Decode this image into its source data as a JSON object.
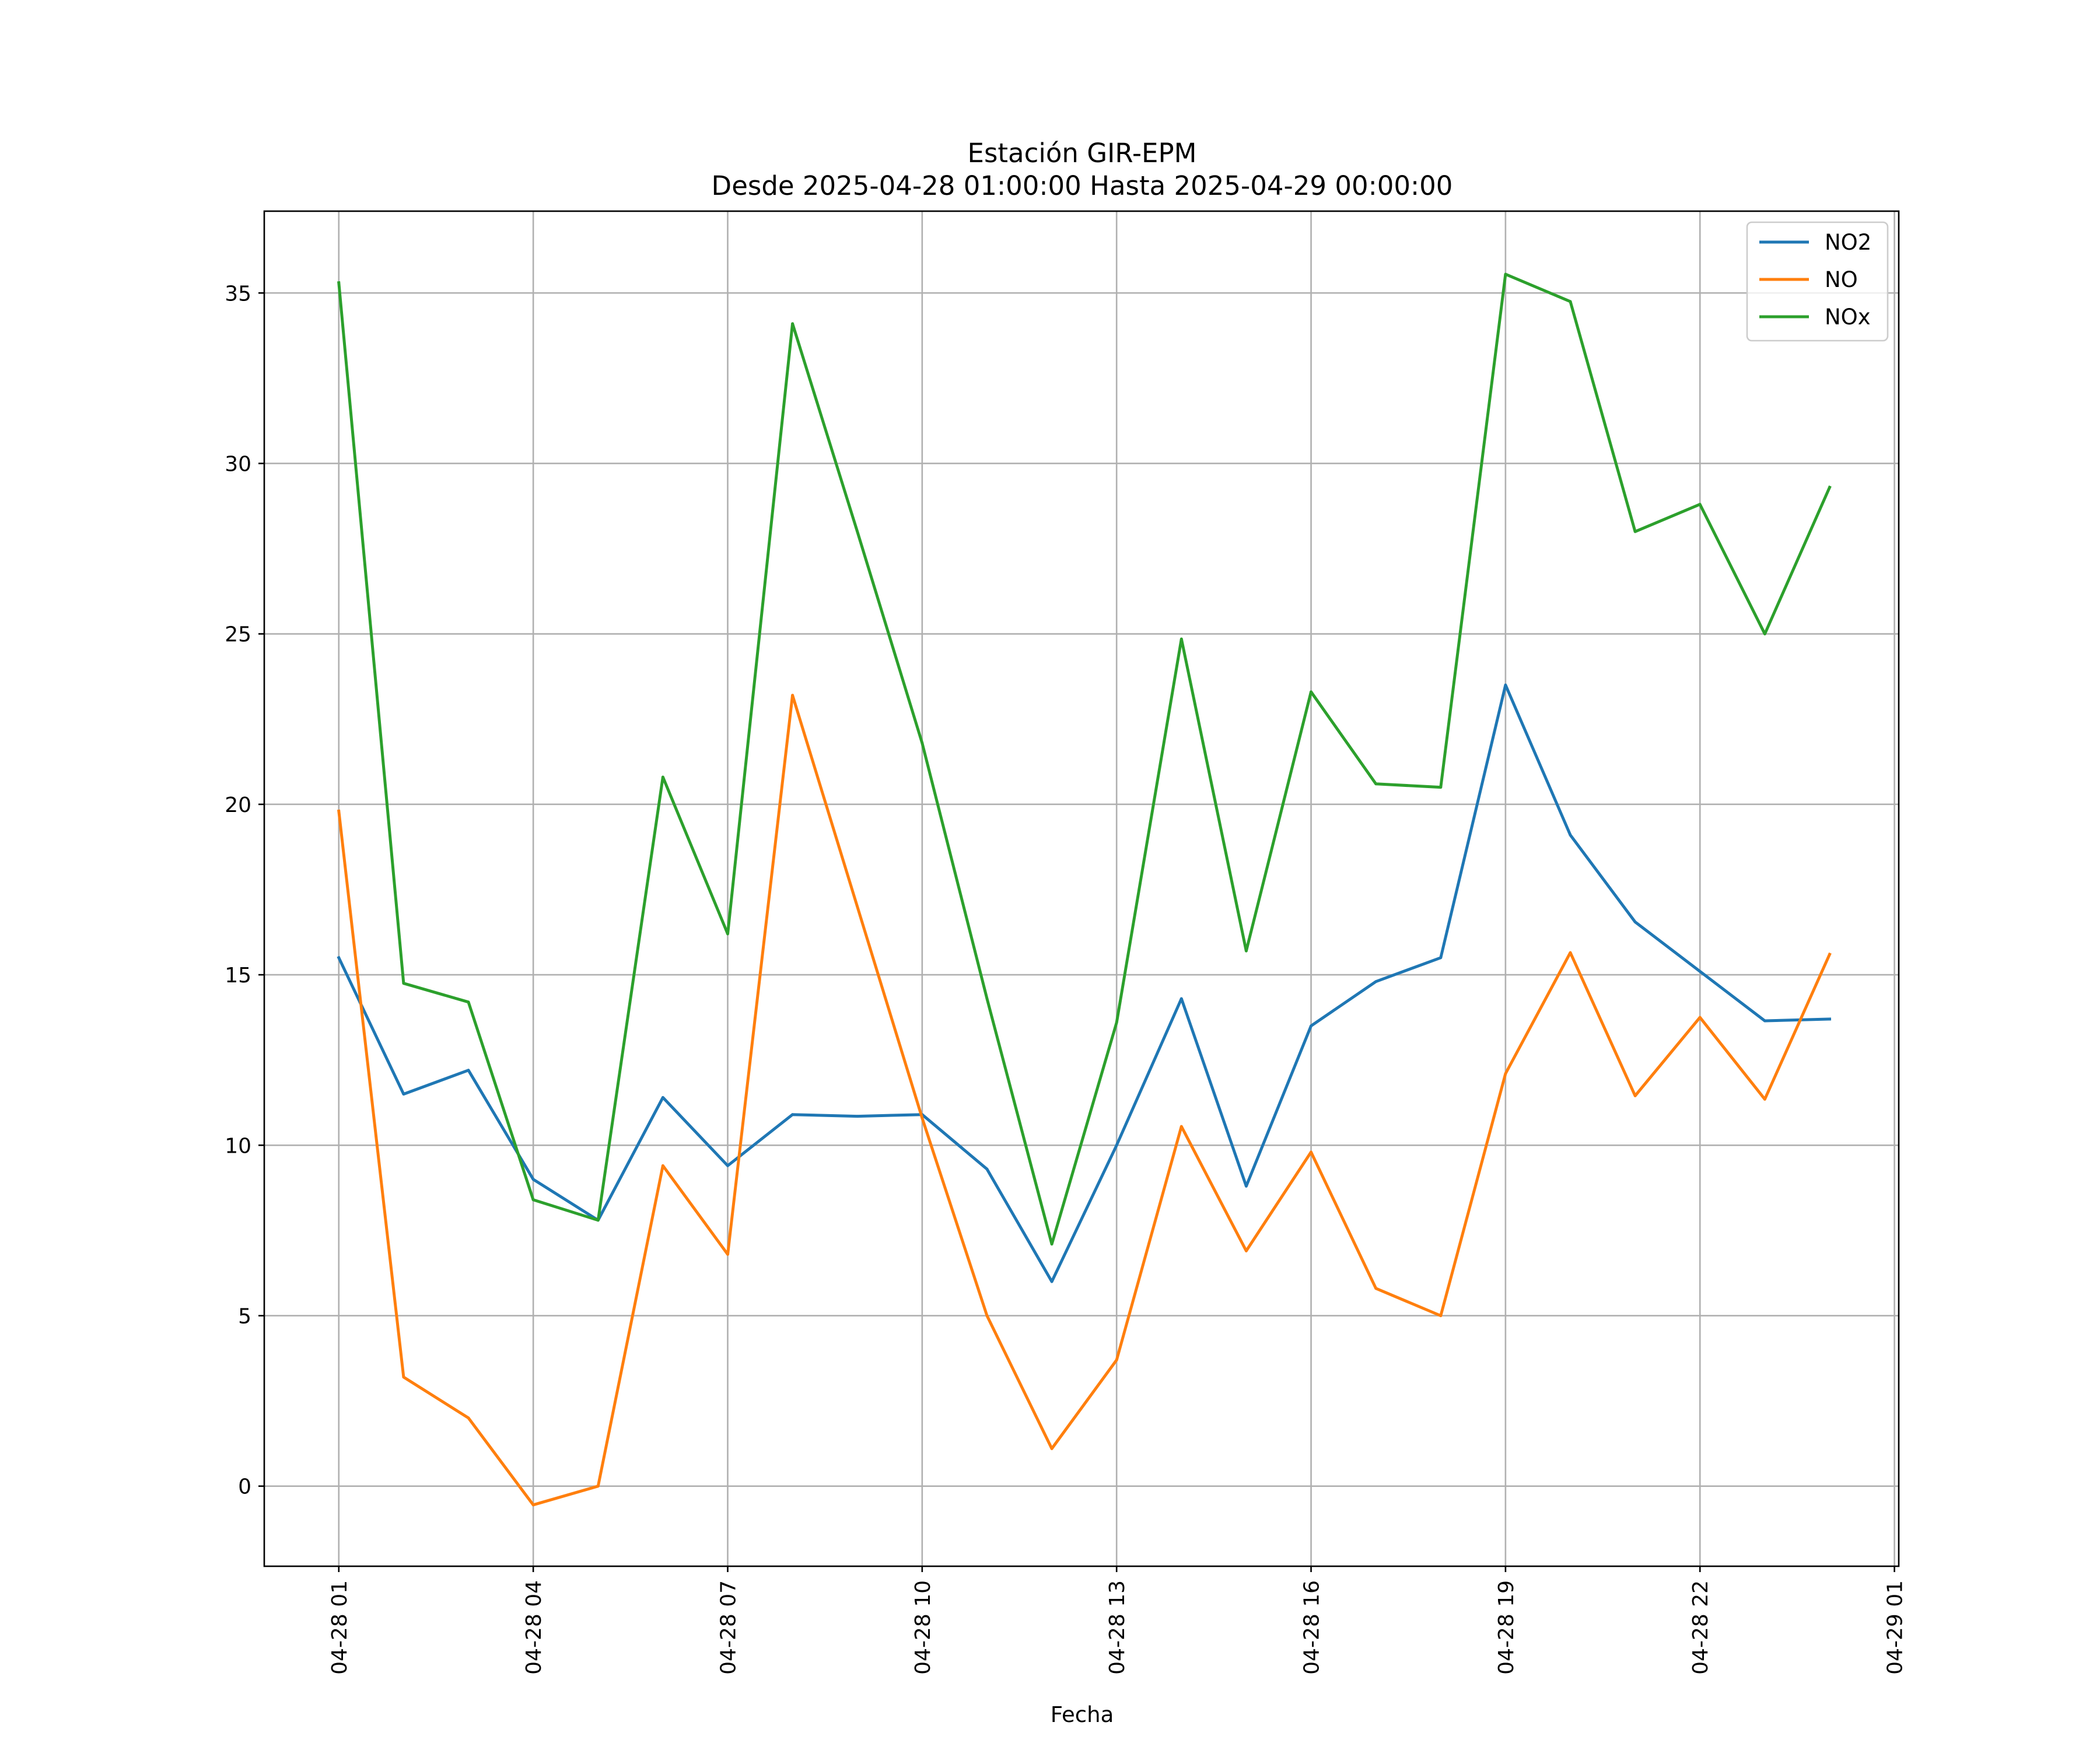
{
  "chart_data": {
    "type": "line",
    "title": "Estación GIR-EPM",
    "subtitle": "Desde 2025-04-28 01:00:00 Hasta 2025-04-29 00:00:00",
    "xlabel": "Fecha",
    "ylabel": "",
    "x_tick_labels": [
      "04-28 01",
      "04-28 04",
      "04-28 07",
      "04-28 10",
      "04-28 13",
      "04-28 16",
      "04-28 19",
      "04-28 22",
      "04-29 01"
    ],
    "y_ticks": [
      0,
      5,
      10,
      15,
      20,
      25,
      30,
      35
    ],
    "ylim": [
      -2.35,
      37.4
    ],
    "xlim": [
      "2025-04-27 23:51",
      "2025-04-29 01:04"
    ],
    "grid": true,
    "legend_position": "top-right",
    "x": [
      "2025-04-28 01:00",
      "2025-04-28 02:00",
      "2025-04-28 03:00",
      "2025-04-28 04:00",
      "2025-04-28 05:00",
      "2025-04-28 06:00",
      "2025-04-28 07:00",
      "2025-04-28 08:00",
      "2025-04-28 09:00",
      "2025-04-28 10:00",
      "2025-04-28 11:00",
      "2025-04-28 12:00",
      "2025-04-28 13:00",
      "2025-04-28 14:00",
      "2025-04-28 15:00",
      "2025-04-28 16:00",
      "2025-04-28 17:00",
      "2025-04-28 18:00",
      "2025-04-28 19:00",
      "2025-04-28 20:00",
      "2025-04-28 21:00",
      "2025-04-28 22:00",
      "2025-04-28 23:00",
      "2025-04-29 00:00"
    ],
    "series": [
      {
        "name": "NO2",
        "color": "#1f77b4",
        "values": [
          15.5,
          11.5,
          12.2,
          9.0,
          7.8,
          11.4,
          9.4,
          10.9,
          10.85,
          10.9,
          9.3,
          6.0,
          10.0,
          14.3,
          8.8,
          13.5,
          14.8,
          15.5,
          23.5,
          19.1,
          16.55,
          15.1,
          13.65,
          13.7
        ]
      },
      {
        "name": "NO",
        "color": "#ff7f0e",
        "values": [
          19.8,
          3.2,
          2.0,
          -0.55,
          0.0,
          9.4,
          6.8,
          23.2,
          17.0,
          10.8,
          5.0,
          1.1,
          3.7,
          10.55,
          6.9,
          9.8,
          5.8,
          5.0,
          12.1,
          15.65,
          11.45,
          13.75,
          11.35,
          15.6
        ]
      },
      {
        "name": "NOx",
        "color": "#2ca02c",
        "values": [
          35.3,
          14.75,
          14.2,
          8.4,
          7.8,
          20.8,
          16.2,
          34.1,
          28.0,
          21.8,
          14.3,
          7.1,
          13.6,
          24.85,
          15.7,
          23.3,
          20.6,
          20.5,
          35.55,
          34.75,
          28.0,
          28.8,
          25.0,
          29.3
        ]
      }
    ]
  }
}
